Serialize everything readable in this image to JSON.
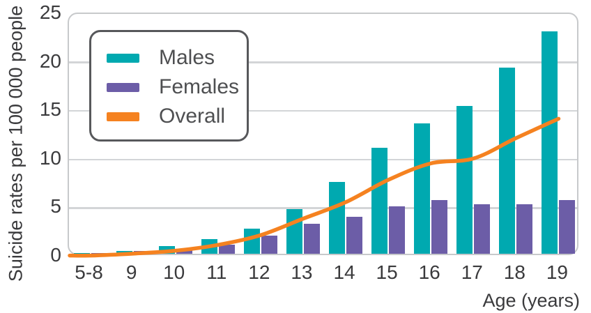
{
  "figure": {
    "y_axis_title": "Suicide rates per 100 000 people",
    "x_axis_title": "Age (years)"
  },
  "chart_data": {
    "type": "bar",
    "title": "",
    "categories": [
      "5-8",
      "9",
      "10",
      "11",
      "12",
      "13",
      "14",
      "15",
      "16",
      "17",
      "18",
      "19"
    ],
    "series": [
      {
        "name": "Males",
        "type": "bar",
        "color": "#00a9b0",
        "values": [
          0.1,
          0.3,
          0.8,
          1.5,
          2.6,
          4.6,
          7.4,
          10.9,
          13.4,
          15.2,
          19.2,
          22.9
        ]
      },
      {
        "name": "Females",
        "type": "bar",
        "color": "#6c5da7",
        "values": [
          0.1,
          0.3,
          0.5,
          0.9,
          1.9,
          3.1,
          3.8,
          4.9,
          5.5,
          5.1,
          5.1,
          5.5
        ]
      },
      {
        "name": "Overall",
        "type": "line",
        "color": "#f58220",
        "values": [
          0.1,
          0.3,
          0.6,
          1.2,
          2.2,
          3.9,
          5.6,
          7.9,
          9.6,
          10.1,
          12.2,
          14.2
        ]
      }
    ],
    "xlabel": "Age (years)",
    "ylabel": "Suicide rates per 100 000 people",
    "ylim": [
      0,
      25
    ],
    "yticks": [
      0,
      5,
      10,
      15,
      20,
      25
    ],
    "grid": true,
    "legend_position": "upper-left",
    "colors": {
      "frame": "#c7c9cb",
      "gridline": "#d3d5d7",
      "axis_text": "#3a3a3c",
      "legend_border": "#57585b",
      "legend_text": "#4e4f51"
    }
  }
}
